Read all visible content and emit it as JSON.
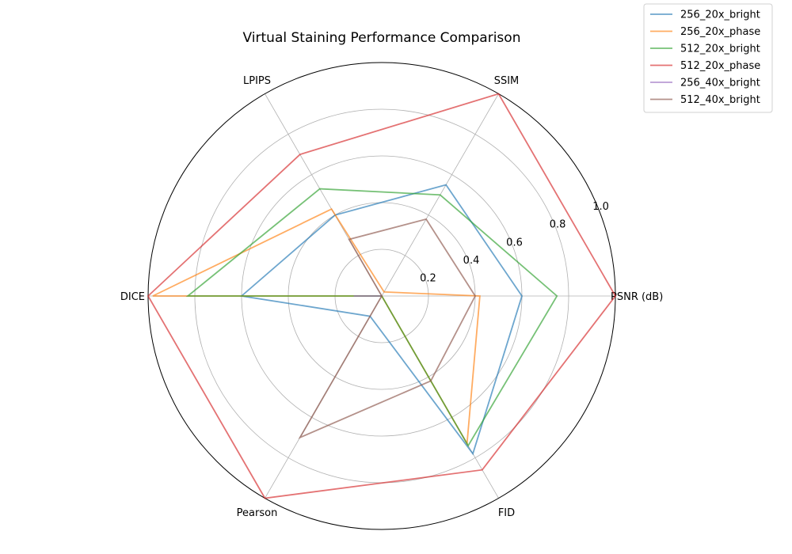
{
  "chart_data": {
    "type": "radar",
    "title": "Virtual Staining Performance Comparison",
    "axes": [
      "PSNR (dB)",
      "SSIM",
      "LPIPS",
      "DICE",
      "Pearson",
      "FID"
    ],
    "rlim": [
      0,
      1.0
    ],
    "radial_ticks": [
      0.2,
      0.4,
      0.6,
      0.8,
      1.0
    ],
    "radial_tick_labels": [
      "0.2",
      "0.4",
      "0.6",
      "0.8",
      "1.0"
    ],
    "grid": true,
    "legend_position": "top-right",
    "series": [
      {
        "name": "256_20x_bright",
        "color": "#1f77b4",
        "values": [
          0.6,
          0.55,
          0.4,
          0.6,
          0.1,
          0.78
        ]
      },
      {
        "name": "256_20x_phase",
        "color": "#ff7f0e",
        "values": [
          0.42,
          0.02,
          0.43,
          0.98,
          0.0,
          0.73
        ]
      },
      {
        "name": "512_20x_bright",
        "color": "#2ca02c",
        "values": [
          0.75,
          0.5,
          0.53,
          0.83,
          0.0,
          0.74
        ]
      },
      {
        "name": "512_20x_phase",
        "color": "#d62728",
        "values": [
          1.0,
          1.0,
          0.7,
          1.0,
          1.0,
          0.86
        ]
      },
      {
        "name": "256_40x_bright",
        "color": "#9467bd",
        "values": [
          0.0,
          0.0,
          0.0,
          0.12,
          0.0,
          0.0
        ]
      },
      {
        "name": "512_40x_bright",
        "color": "#8c564b",
        "values": [
          0.4,
          0.38,
          0.28,
          0.0,
          0.7,
          0.42
        ]
      }
    ]
  }
}
